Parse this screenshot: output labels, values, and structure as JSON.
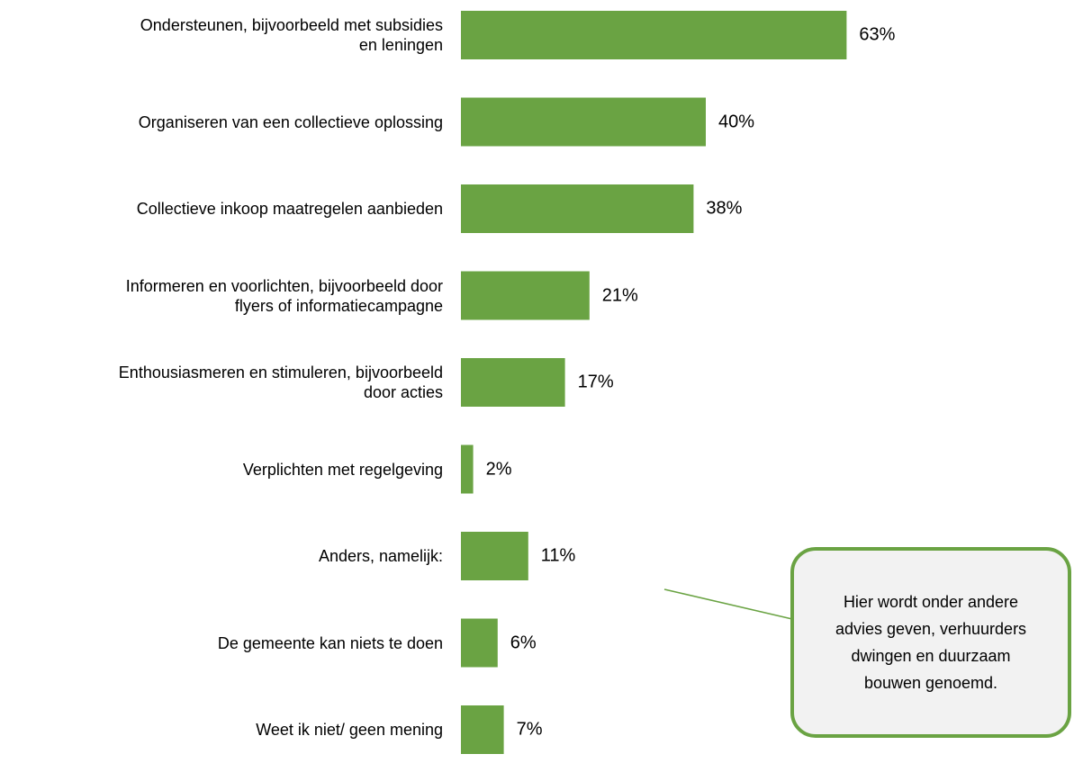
{
  "chart_data": {
    "type": "bar",
    "orientation": "horizontal",
    "categories": [
      "Ondersteunen, bijvoorbeeld met subsidies\nen leningen",
      "Organiseren van een collectieve oplossing",
      "Collectieve inkoop maatregelen aanbieden",
      "Informeren en voorlichten, bijvoorbeeld door\nflyers of informatiecampagne",
      "Enthousiasmeren en stimuleren, bijvoorbeeld\ndoor acties",
      "Verplichten met regelgeving",
      "Anders, namelijk:",
      "De gemeente kan niets te doen",
      "Weet ik niet/ geen mening"
    ],
    "values": [
      63,
      40,
      38,
      21,
      17,
      2,
      11,
      6,
      7
    ],
    "value_labels": [
      "63%",
      "40%",
      "38%",
      "21%",
      "17%",
      "2%",
      "11%",
      "6%",
      "7%"
    ],
    "color": "#6aa343",
    "annotation": "Hier wordt onder andere\nadvies geven, verhuurders\ndwingen en duurzaam\nbouwen genoemd."
  }
}
